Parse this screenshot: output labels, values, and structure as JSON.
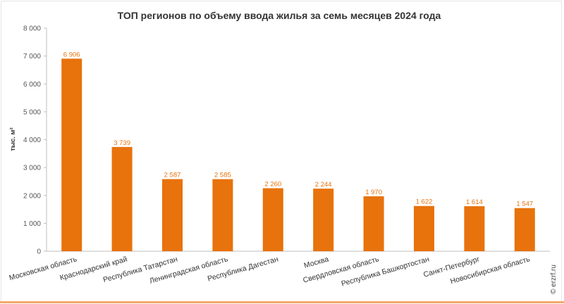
{
  "chart_data": {
    "type": "bar",
    "title": "ТОП регионов по объему ввода жилья за семь месяцев 2024 года",
    "ylabel": "тыс. м²",
    "xlabel": "",
    "categories": [
      "Московская область",
      "Краснодарский край",
      "Республика Татарстан",
      "Ленинградская область",
      "Республика Дагестан",
      "Москва",
      "Свердловская область",
      "Республика Башкортостан",
      "Санкт-Петербург",
      "Новосибирская область"
    ],
    "values": [
      6906,
      3739,
      2587,
      2585,
      2260,
      2244,
      1970,
      1622,
      1614,
      1547
    ],
    "value_labels": [
      "6 906",
      "3 739",
      "2 587",
      "2 585",
      "2 260",
      "2 244",
      "1 970",
      "1 622",
      "1 614",
      "1 547"
    ],
    "ylim": [
      0,
      8000
    ],
    "yticks": [
      0,
      1000,
      2000,
      3000,
      4000,
      5000,
      6000,
      7000,
      8000
    ],
    "ytick_labels": [
      "0",
      "1 000",
      "2 000",
      "3 000",
      "4 000",
      "5 000",
      "6 000",
      "7 000",
      "8 000"
    ],
    "grid": false,
    "legend": "none",
    "bar_color": "#e8720c"
  },
  "credit": "© erzrf.ru"
}
